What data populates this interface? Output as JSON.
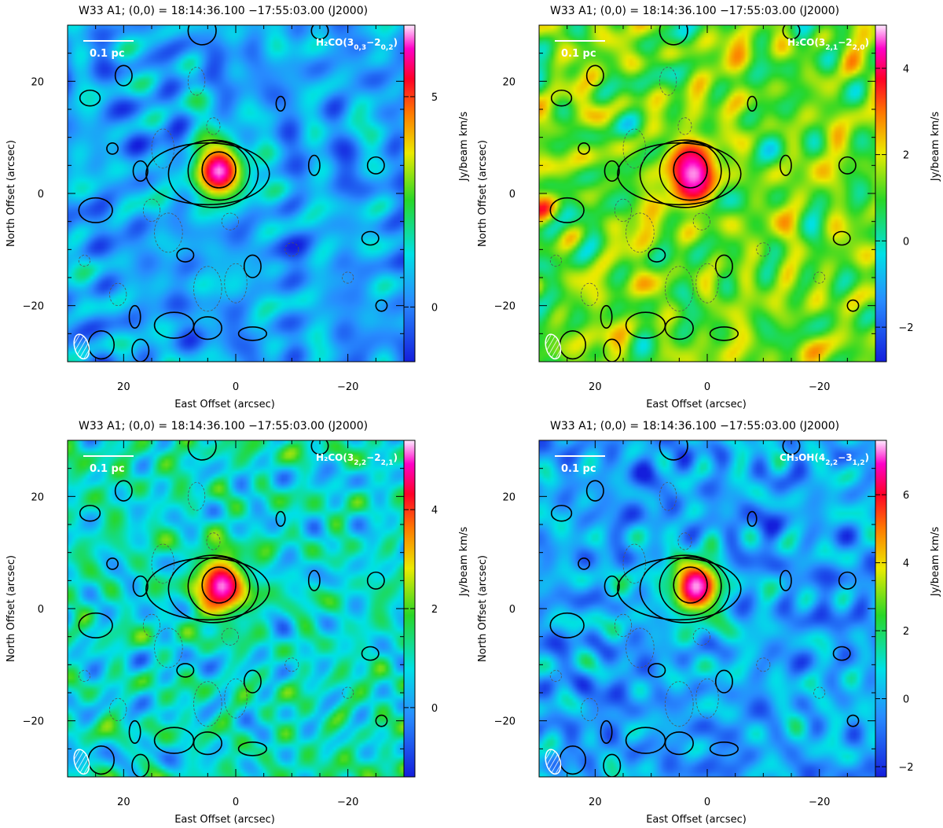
{
  "figure": {
    "panels": [
      {
        "title": "W33 A1; (0,0) = 18:14:36.100        −17:55:03.00 (J2000)",
        "line_label": {
          "species": "H₂CO(",
          "j": "3",
          "ka_kc": "0,3",
          "dash": "−",
          "j2": "2",
          "ka_kc2": "0,2",
          "close": ")"
        },
        "scale_bar": "0.1 pc",
        "colorbar": {
          "label": "Jy/beam km/s",
          "range": [
            -1.3,
            6.7
          ],
          "ticks": [
            0,
            5,
            10
          ],
          "tick_labels": [
            "0",
            "5",
            ""
          ],
          "show_ticks": [
            "0",
            "5"
          ]
        },
        "map_style": "blue"
      },
      {
        "title": "W33 A1; (0,0) = 18:14:36.100        −17:55:03.00 (J2000)",
        "line_label": {
          "species": "H₂CO(",
          "j": "3",
          "ka_kc": "2,1",
          "dash": "−",
          "j2": "2",
          "ka_kc2": "2,0",
          "close": ")"
        },
        "scale_bar": "0.1 pc",
        "colorbar": {
          "label": "Jy/beam km/s",
          "range": [
            -2.8,
            5.0
          ],
          "show_ticks": [
            "−2",
            "0",
            "2",
            "4"
          ]
        },
        "map_style": "yellow"
      },
      {
        "title": "W33 A1; (0,0) = 18:14:36.100        −17:55:03.00 (J2000)",
        "line_label": {
          "species": "H₂CO(",
          "j": "3",
          "ka_kc": "2,2",
          "dash": "−",
          "j2": "2",
          "ka_kc2": "2,1",
          "close": ")"
        },
        "scale_bar": "0.1 pc",
        "colorbar": {
          "label": "Jy/beam km/s",
          "range": [
            -1.4,
            5.4
          ],
          "show_ticks": [
            "0",
            "2",
            "4"
          ]
        },
        "map_style": "mixed"
      },
      {
        "title": "W33 A1; (0,0) = 18:14:36.100        −17:55:03.00 (J2000)",
        "line_label": {
          "species": "CH₃OH(",
          "j": "4",
          "ka_kc": "2,2",
          "dash": "−",
          "j2": "3",
          "ka_kc2": "1,2",
          "close": ")"
        },
        "scale_bar": "0.1 pc",
        "colorbar": {
          "label": "Jy/beam km/s",
          "range": [
            -2.3,
            7.6
          ],
          "show_ticks": [
            "−2",
            "0",
            "2",
            "4",
            "6"
          ]
        },
        "map_style": "blue"
      }
    ]
  },
  "chart_data": [
    {
      "type": "heatmap",
      "title": "W33 A1; (0,0) = 18:14:36.100        −17:55:03.00 (J2000)",
      "xlabel": "East Offset (arcsec)",
      "ylabel": "North Offset (arcsec)",
      "xlim": [
        30,
        -30
      ],
      "ylim": [
        -30,
        30
      ],
      "x_ticks": [
        20,
        0,
        -20
      ],
      "y_ticks": [
        20,
        0,
        -20
      ],
      "x_tick_labels": [
        "20",
        "0",
        "−20"
      ],
      "y_tick_labels": [
        "20",
        "0",
        "−20"
      ],
      "colorbar_label": "Jy/beam km/s",
      "colorbar_range": [
        -1.3,
        6.7
      ],
      "colorbar_ticks": [
        0,
        5
      ],
      "peak": {
        "x": 3,
        "y": 4,
        "value": 6.5
      }
    },
    {
      "type": "heatmap",
      "title": "W33 A1; (0,0) = 18:14:36.100        −17:55:03.00 (J2000)",
      "xlabel": "East Offset (arcsec)",
      "ylabel": "North Offset (arcsec)",
      "xlim": [
        30,
        -30
      ],
      "ylim": [
        -30,
        30
      ],
      "x_ticks": [
        20,
        0,
        -20
      ],
      "y_ticks": [
        20,
        0,
        -20
      ],
      "x_tick_labels": [
        "20",
        "0",
        "−20"
      ],
      "y_tick_labels": [
        "20",
        "0",
        "−20"
      ],
      "colorbar_label": "Jy/beam km/s",
      "colorbar_range": [
        -2.8,
        5.0
      ],
      "colorbar_ticks": [
        -2,
        0,
        2,
        4
      ],
      "peak": {
        "x": 2.5,
        "y": 3.5,
        "value": 4.8
      }
    },
    {
      "type": "heatmap",
      "title": "W33 A1; (0,0) = 18:14:36.100        −17:55:03.00 (J2000)",
      "xlabel": "East Offset (arcsec)",
      "ylabel": "North Offset (arcsec)",
      "xlim": [
        30,
        -30
      ],
      "ylim": [
        -30,
        30
      ],
      "x_ticks": [
        20,
        0,
        -20
      ],
      "y_ticks": [
        20,
        0,
        -20
      ],
      "x_tick_labels": [
        "20",
        "0",
        "−20"
      ],
      "y_tick_labels": [
        "20",
        "0",
        "−20"
      ],
      "colorbar_label": "Jy/beam km/s",
      "colorbar_range": [
        -1.4,
        5.4
      ],
      "colorbar_ticks": [
        0,
        2,
        4
      ],
      "peak": {
        "x": 2.5,
        "y": 4,
        "value": 5.2
      }
    },
    {
      "type": "heatmap",
      "title": "W33 A1; (0,0) = 18:14:36.100        −17:55:03.00 (J2000)",
      "xlabel": "East Offset (arcsec)",
      "ylabel": "North Offset (arcsec)",
      "xlim": [
        30,
        -30
      ],
      "ylim": [
        -30,
        30
      ],
      "x_ticks": [
        20,
        0,
        -20
      ],
      "y_ticks": [
        20,
        0,
        -20
      ],
      "x_tick_labels": [
        "20",
        "0",
        "−20"
      ],
      "y_tick_labels": [
        "20",
        "0",
        "−20"
      ],
      "colorbar_label": "Jy/beam km/s",
      "colorbar_range": [
        -2.3,
        7.6
      ],
      "colorbar_ticks": [
        -2,
        0,
        2,
        4,
        6
      ],
      "peak": {
        "x": 2,
        "y": 4,
        "value": 7.4
      }
    }
  ],
  "contours": {
    "solid": [
      {
        "cx": 3,
        "cy": 4,
        "rx": 5.5,
        "ry": 5.2
      },
      {
        "cx": 4,
        "cy": 3.5,
        "rx": 8,
        "ry": 6
      },
      {
        "cx": 5,
        "cy": 3.5,
        "rx": 11,
        "ry": 5.5
      },
      {
        "cx": 3,
        "cy": 4.2,
        "rx": 3,
        "ry": 3.2
      },
      {
        "cx": 26,
        "cy": 17,
        "rx": 1.8,
        "ry": 1.4
      },
      {
        "cx": 20,
        "cy": 21,
        "rx": 1.5,
        "ry": 1.8
      },
      {
        "cx": 25,
        "cy": -3,
        "rx": 3,
        "ry": 2.2
      },
      {
        "cx": 17,
        "cy": 4,
        "rx": 1.3,
        "ry": 1.8
      },
      {
        "cx": 22,
        "cy": 8,
        "rx": 1,
        "ry": 1
      },
      {
        "cx": -8,
        "cy": 16,
        "rx": 0.8,
        "ry": 1.3
      },
      {
        "cx": -14,
        "cy": 5,
        "rx": 1,
        "ry": 1.8
      },
      {
        "cx": -25,
        "cy": 5,
        "rx": 1.5,
        "ry": 1.5
      },
      {
        "cx": -24,
        "cy": -8,
        "rx": 1.5,
        "ry": 1.2
      },
      {
        "cx": -3,
        "cy": -13,
        "rx": 1.5,
        "ry": 2
      },
      {
        "cx": 9,
        "cy": -11,
        "rx": 1.5,
        "ry": 1.2
      },
      {
        "cx": -26,
        "cy": -20,
        "rx": 1,
        "ry": 1
      },
      {
        "cx": 11,
        "cy": -23.5,
        "rx": 3.5,
        "ry": 2.3
      },
      {
        "cx": 5,
        "cy": -24,
        "rx": 2.5,
        "ry": 2
      },
      {
        "cx": -3,
        "cy": -25,
        "rx": 2.5,
        "ry": 1.2
      },
      {
        "cx": 18,
        "cy": -22,
        "rx": 1,
        "ry": 2
      },
      {
        "cx": 24,
        "cy": -27,
        "rx": 2.3,
        "ry": 2.5
      },
      {
        "cx": 17,
        "cy": -28,
        "rx": 1.5,
        "ry": 2
      },
      {
        "cx": 6,
        "cy": 29,
        "rx": 2.5,
        "ry": 2.5
      },
      {
        "cx": -15,
        "cy": 29,
        "rx": 1.5,
        "ry": 1.5
      }
    ],
    "dashed": [
      {
        "cx": 13,
        "cy": 8,
        "rx": 2,
        "ry": 3.5
      },
      {
        "cx": 12,
        "cy": -7,
        "rx": 2.5,
        "ry": 3.5
      },
      {
        "cx": 15,
        "cy": -3,
        "rx": 1.5,
        "ry": 2
      },
      {
        "cx": 5,
        "cy": -17,
        "rx": 2.5,
        "ry": 4
      },
      {
        "cx": 0,
        "cy": -16,
        "rx": 2,
        "ry": 3.5
      },
      {
        "cx": 21,
        "cy": -18,
        "rx": 1.5,
        "ry": 2
      },
      {
        "cx": 7,
        "cy": 20,
        "rx": 1.5,
        "ry": 2.5
      },
      {
        "cx": 4,
        "cy": 12,
        "rx": 1.2,
        "ry": 1.5
      },
      {
        "cx": 1,
        "cy": -5,
        "rx": 1.5,
        "ry": 1.5
      },
      {
        "cx": -20,
        "cy": -15,
        "rx": 1,
        "ry": 1
      },
      {
        "cx": -10,
        "cy": -10,
        "rx": 1.2,
        "ry": 1.2
      },
      {
        "cx": 27,
        "cy": -12,
        "rx": 1,
        "ry": 1
      }
    ]
  }
}
